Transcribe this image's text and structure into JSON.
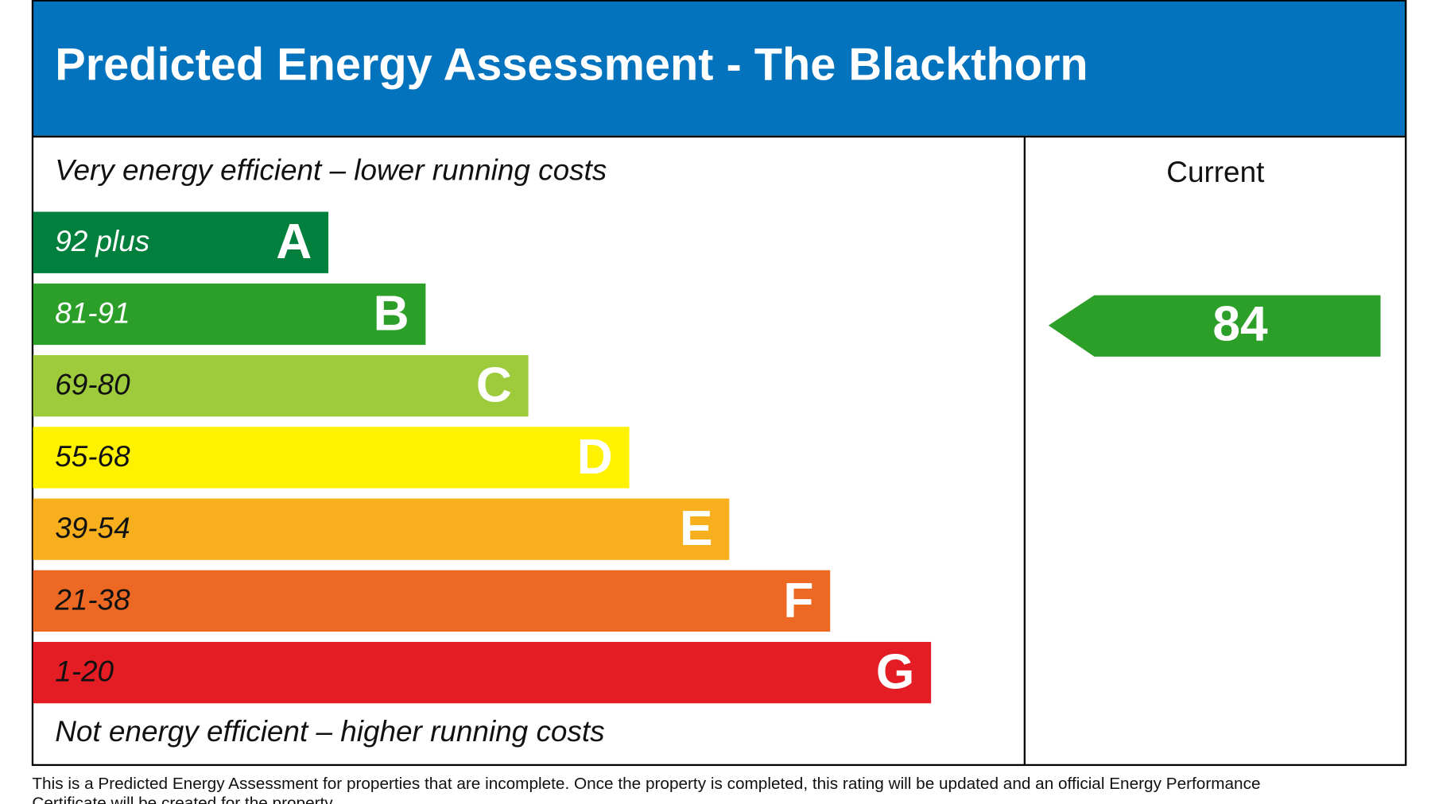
{
  "header": {
    "title": "Predicted Energy Assessment - The Blackthorn"
  },
  "scale": {
    "top_label": "Very energy efficient – lower running costs",
    "bottom_label": "Not energy efficient – higher running costs",
    "bands": [
      {
        "range": "92 plus",
        "letter": "A",
        "color": "#007f3d"
      },
      {
        "range": "81-91",
        "letter": "B",
        "color": "#2c9f29"
      },
      {
        "range": "69-80",
        "letter": "C",
        "color": "#9dcb3c"
      },
      {
        "range": "55-68",
        "letter": "D",
        "color": "#fff200"
      },
      {
        "range": "39-54",
        "letter": "E",
        "color": "#f7af1d"
      },
      {
        "range": "21-38",
        "letter": "F",
        "color": "#ed6823"
      },
      {
        "range": "1-20",
        "letter": "G",
        "color": "#e31d23"
      }
    ]
  },
  "current": {
    "label": "Current",
    "value": 84,
    "color": "#2c9f29"
  },
  "footer": {
    "lines": [
      "This is a Predicted Energy Assessment for properties that are incomplete. Once the property is completed, this rating will be updated and an official Energy Performance",
      "Certificate will be created for the property."
    ]
  }
}
